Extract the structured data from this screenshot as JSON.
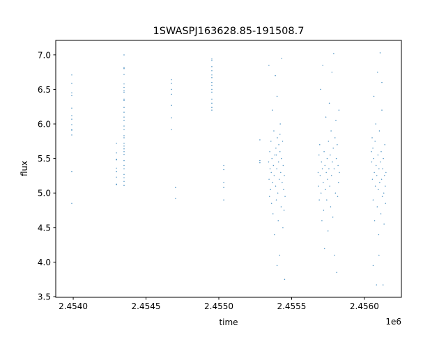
{
  "chart_data": {
    "type": "scatter",
    "title": "1SWASPJ163628.85-191508.7",
    "xlabel": "time",
    "ylabel": "flux",
    "x_offset_label": "1e6",
    "xlim": [
      2453880,
      2456254
    ],
    "ylim": [
      3.49,
      7.21
    ],
    "xticks": [
      2454000,
      2454500,
      2455000,
      2455500,
      2456000
    ],
    "xtick_labels": [
      "2.4540",
      "2.4545",
      "2.4550",
      "2.4555",
      "2.4560"
    ],
    "yticks": [
      3.5,
      4.0,
      4.5,
      5.0,
      5.5,
      6.0,
      6.5,
      7.0
    ],
    "ytick_labels": [
      "3.5",
      "4.0",
      "4.5",
      "5.0",
      "5.5",
      "6.0",
      "6.5",
      "7.0"
    ],
    "grid": false,
    "marker_color": "#1f77b4",
    "points": [
      [
        2453990,
        6.71
      ],
      [
        2453990,
        6.59
      ],
      [
        2453990,
        6.45
      ],
      [
        2453990,
        6.41
      ],
      [
        2453990,
        6.23
      ],
      [
        2453990,
        6.12
      ],
      [
        2453990,
        6.07
      ],
      [
        2453990,
        5.99
      ],
      [
        2453990,
        5.92
      ],
      [
        2453990,
        5.91
      ],
      [
        2453990,
        5.84
      ],
      [
        2453990,
        5.31
      ],
      [
        2453990,
        4.85
      ],
      [
        2454297,
        5.72
      ],
      [
        2454297,
        5.58
      ],
      [
        2454297,
        5.49
      ],
      [
        2454297,
        5.48
      ],
      [
        2454297,
        5.36
      ],
      [
        2454297,
        5.31
      ],
      [
        2454297,
        5.23
      ],
      [
        2454297,
        5.13
      ],
      [
        2454297,
        5.12
      ],
      [
        2454349,
        7.0
      ],
      [
        2454349,
        6.82
      ],
      [
        2454349,
        6.8
      ],
      [
        2454349,
        6.72
      ],
      [
        2454349,
        6.58
      ],
      [
        2454349,
        6.53
      ],
      [
        2454349,
        6.48
      ],
      [
        2454349,
        6.46
      ],
      [
        2454349,
        6.36
      ],
      [
        2454349,
        6.34
      ],
      [
        2454349,
        6.24
      ],
      [
        2454349,
        6.17
      ],
      [
        2454349,
        6.1
      ],
      [
        2454349,
        6.05
      ],
      [
        2454349,
        5.97
      ],
      [
        2454349,
        5.92
      ],
      [
        2454349,
        5.83
      ],
      [
        2454349,
        5.8
      ],
      [
        2454349,
        5.72
      ],
      [
        2454349,
        5.68
      ],
      [
        2454349,
        5.64
      ],
      [
        2454349,
        5.6
      ],
      [
        2454349,
        5.56
      ],
      [
        2454349,
        5.47
      ],
      [
        2454349,
        5.4
      ],
      [
        2454349,
        5.35
      ],
      [
        2454349,
        5.27
      ],
      [
        2454349,
        5.22
      ],
      [
        2454349,
        5.17
      ],
      [
        2454349,
        5.11
      ],
      [
        2454675,
        6.64
      ],
      [
        2454675,
        6.59
      ],
      [
        2454675,
        6.5
      ],
      [
        2454675,
        6.43
      ],
      [
        2454675,
        6.27
      ],
      [
        2454675,
        6.09
      ],
      [
        2454675,
        5.92
      ],
      [
        2454703,
        5.08
      ],
      [
        2454703,
        4.92
      ],
      [
        2454952,
        6.94
      ],
      [
        2454952,
        6.92
      ],
      [
        2454952,
        6.83
      ],
      [
        2454952,
        6.77
      ],
      [
        2454952,
        6.71
      ],
      [
        2454952,
        6.67
      ],
      [
        2454952,
        6.6
      ],
      [
        2454952,
        6.56
      ],
      [
        2454952,
        6.5
      ],
      [
        2454952,
        6.46
      ],
      [
        2454952,
        6.36
      ],
      [
        2454952,
        6.3
      ],
      [
        2454952,
        6.24
      ],
      [
        2454952,
        6.2
      ],
      [
        2455034,
        5.4
      ],
      [
        2455034,
        5.34
      ],
      [
        2455034,
        5.15
      ],
      [
        2455034,
        5.08
      ],
      [
        2455034,
        4.9
      ],
      [
        2455282,
        5.77
      ],
      [
        2455282,
        5.47
      ],
      [
        2455282,
        5.44
      ],
      [
        2455342,
        5.45
      ],
      [
        2455345,
        5.2
      ],
      [
        2455348,
        4.95
      ],
      [
        2455350,
        5.6
      ],
      [
        2455352,
        5.35
      ],
      [
        2455355,
        5.05
      ],
      [
        2455358,
        5.75
      ],
      [
        2455360,
        5.3
      ],
      [
        2455362,
        4.85
      ],
      [
        2455365,
        5.5
      ],
      [
        2455368,
        6.2
      ],
      [
        2455370,
        5.15
      ],
      [
        2455372,
        4.7
      ],
      [
        2455375,
        5.4
      ],
      [
        2455378,
        5.9
      ],
      [
        2455380,
        5.25
      ],
      [
        2455382,
        4.4
      ],
      [
        2455385,
        5.55
      ],
      [
        2455388,
        6.7
      ],
      [
        2455390,
        5.1
      ],
      [
        2455392,
        5.65
      ],
      [
        2455395,
        4.9
      ],
      [
        2455398,
        5.35
      ],
      [
        2455400,
        6.4
      ],
      [
        2455402,
        5.8
      ],
      [
        2455405,
        5.0
      ],
      [
        2455408,
        4.6
      ],
      [
        2455410,
        5.45
      ],
      [
        2455412,
        5.7
      ],
      [
        2455415,
        5.2
      ],
      [
        2455418,
        4.1
      ],
      [
        2455420,
        5.6
      ],
      [
        2455422,
        6.0
      ],
      [
        2455425,
        5.3
      ],
      [
        2455428,
        4.8
      ],
      [
        2455430,
        5.5
      ],
      [
        2455432,
        6.95
      ],
      [
        2455435,
        5.15
      ],
      [
        2455438,
        5.75
      ],
      [
        2455440,
        4.5
      ],
      [
        2455442,
        5.4
      ],
      [
        2455445,
        5.05
      ],
      [
        2455448,
        4.75
      ],
      [
        2455450,
        5.25
      ],
      [
        2455452,
        3.75
      ],
      [
        2455455,
        4.95
      ],
      [
        2455344,
        6.85
      ],
      [
        2455400,
        3.95
      ],
      [
        2455420,
        5.85
      ],
      [
        2455395,
        5.55
      ],
      [
        2455682,
        5.3
      ],
      [
        2455685,
        5.1
      ],
      [
        2455688,
        5.55
      ],
      [
        2455690,
        4.9
      ],
      [
        2455693,
        5.7
      ],
      [
        2455696,
        5.25
      ],
      [
        2455699,
        6.5
      ],
      [
        2455702,
        5.0
      ],
      [
        2455705,
        5.45
      ],
      [
        2455708,
        4.6
      ],
      [
        2455711,
        5.35
      ],
      [
        2455714,
        6.85
      ],
      [
        2455717,
        5.15
      ],
      [
        2455720,
        4.75
      ],
      [
        2455723,
        5.6
      ],
      [
        2455726,
        4.2
      ],
      [
        2455729,
        5.4
      ],
      [
        2455732,
        5.05
      ],
      [
        2455735,
        6.1
      ],
      [
        2455738,
        5.3
      ],
      [
        2455741,
        4.9
      ],
      [
        2455744,
        5.5
      ],
      [
        2455747,
        5.2
      ],
      [
        2455750,
        4.45
      ],
      [
        2455753,
        5.75
      ],
      [
        2455756,
        5.35
      ],
      [
        2455759,
        6.3
      ],
      [
        2455762,
        5.1
      ],
      [
        2455765,
        5.55
      ],
      [
        2455768,
        4.8
      ],
      [
        2455771,
        5.9
      ],
      [
        2455774,
        5.25
      ],
      [
        2455777,
        6.75
      ],
      [
        2455780,
        5.45
      ],
      [
        2455783,
        4.65
      ],
      [
        2455786,
        5.65
      ],
      [
        2455789,
        7.02
      ],
      [
        2455792,
        5.35
      ],
      [
        2455795,
        4.1
      ],
      [
        2455798,
        5.8
      ],
      [
        2455801,
        5.0
      ],
      [
        2455804,
        6.05
      ],
      [
        2455807,
        5.5
      ],
      [
        2455810,
        3.85
      ],
      [
        2455813,
        5.7
      ],
      [
        2455816,
        4.95
      ],
      [
        2455819,
        5.4
      ],
      [
        2455822,
        5.15
      ],
      [
        2455825,
        6.2
      ],
      [
        2455828,
        5.3
      ],
      [
        2456048,
        5.6
      ],
      [
        2456050,
        5.45
      ],
      [
        2456053,
        5.8
      ],
      [
        2456055,
        5.2
      ],
      [
        2456058,
        5.65
      ],
      [
        2456060,
        4.9
      ],
      [
        2456063,
        5.5
      ],
      [
        2456065,
        6.4
      ],
      [
        2456068,
        5.3
      ],
      [
        2456070,
        4.6
      ],
      [
        2456073,
        5.75
      ],
      [
        2456075,
        5.1
      ],
      [
        2456078,
        6.0
      ],
      [
        2456080,
        5.4
      ],
      [
        2456083,
        3.67
      ],
      [
        2456085,
        5.25
      ],
      [
        2456088,
        4.8
      ],
      [
        2456090,
        6.75
      ],
      [
        2456093,
        5.55
      ],
      [
        2456095,
        5.05
      ],
      [
        2456098,
        4.4
      ],
      [
        2456100,
        5.35
      ],
      [
        2456103,
        5.9
      ],
      [
        2456105,
        5.15
      ],
      [
        2456108,
        7.03
      ],
      [
        2456110,
        5.45
      ],
      [
        2456113,
        4.7
      ],
      [
        2456115,
        5.6
      ],
      [
        2456118,
        5.2
      ],
      [
        2456120,
        6.2
      ],
      [
        2456123,
        4.95
      ],
      [
        2456125,
        5.35
      ],
      [
        2456128,
        3.67
      ],
      [
        2456130,
        5.5
      ],
      [
        2456133,
        5.0
      ],
      [
        2456135,
        4.55
      ],
      [
        2456138,
        5.25
      ],
      [
        2456140,
        5.7
      ],
      [
        2456143,
        5.1
      ],
      [
        2456145,
        4.85
      ],
      [
        2456148,
        5.3
      ],
      [
        2456060,
        3.95
      ],
      [
        2456100,
        4.1
      ],
      [
        2456120,
        6.6
      ]
    ]
  }
}
